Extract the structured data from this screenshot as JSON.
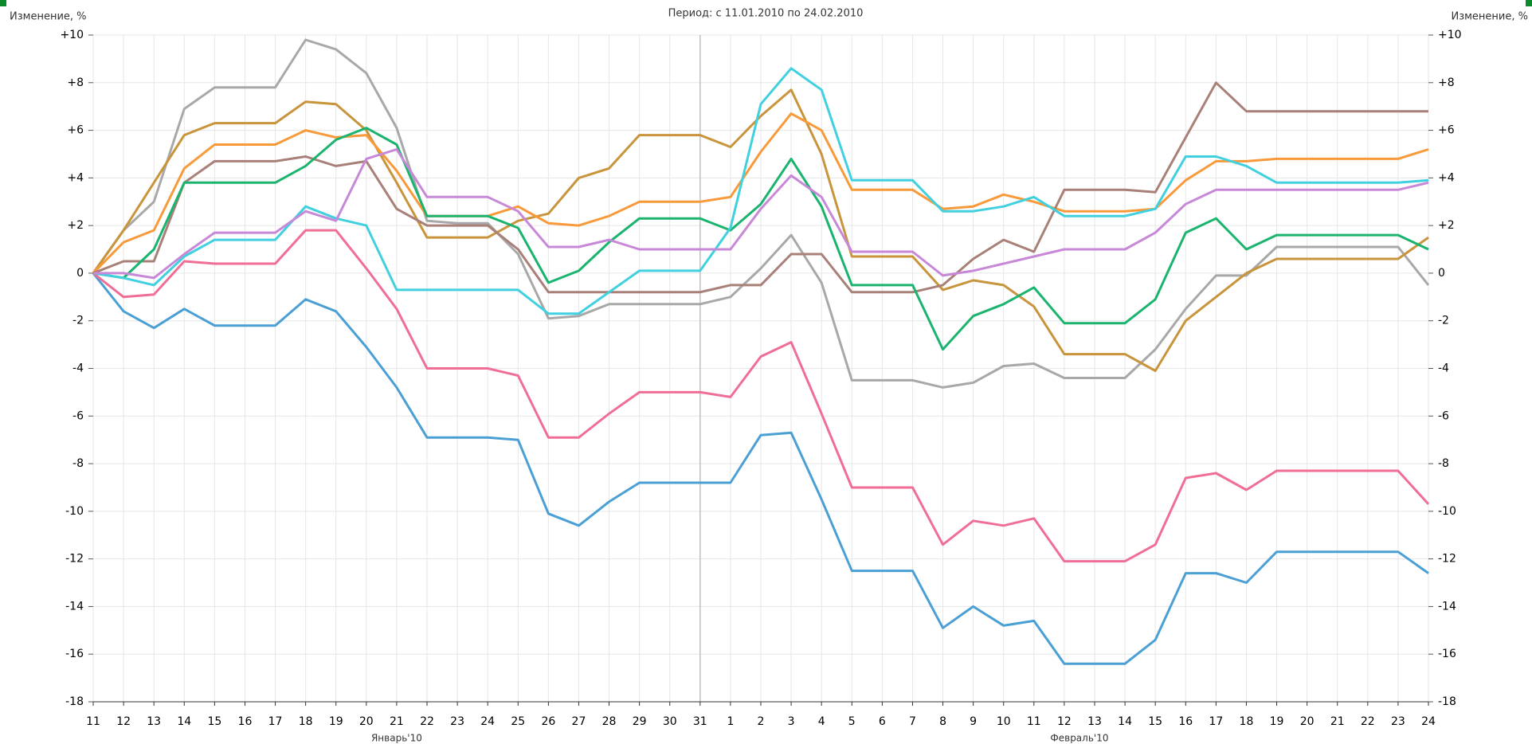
{
  "chart_data": {
    "type": "line",
    "title": "Период: с 11.01.2010 по 24.02.2010",
    "ylabel": "Изменение, %",
    "y2label": "Изменение, %",
    "month_labels": [
      "Январь'10",
      "Февраль'10"
    ],
    "categories": [
      "11",
      "12",
      "13",
      "14",
      "15",
      "16",
      "17",
      "18",
      "19",
      "20",
      "21",
      "22",
      "23",
      "24",
      "25",
      "26",
      "27",
      "28",
      "29",
      "30",
      "31",
      "1",
      "2",
      "3",
      "4",
      "5",
      "6",
      "7",
      "8",
      "9",
      "10",
      "11",
      "12",
      "13",
      "14",
      "15",
      "16",
      "17",
      "18",
      "19",
      "20",
      "21",
      "22",
      "23",
      "24"
    ],
    "ylim": [
      -18,
      10
    ],
    "yticks": [
      {
        "value": 10,
        "label": "+10"
      },
      {
        "value": 8,
        "label": "+8"
      },
      {
        "value": 6,
        "label": "+6"
      },
      {
        "value": 4,
        "label": "+4"
      },
      {
        "value": 2,
        "label": "+2"
      },
      0,
      -2,
      -4,
      -6,
      -8,
      -10,
      -12,
      -14,
      -16,
      -18
    ],
    "grid": true,
    "series": [
      {
        "color": "#4a9fd4",
        "values": [
          0,
          -1.6,
          -2.3,
          -1.5,
          -2.2,
          -2.2,
          -2.2,
          -1.1,
          -1.6,
          -3.1,
          -4.8,
          -6.9,
          -6.9,
          -6.9,
          -7.0,
          -10.1,
          -10.6,
          -9.6,
          -8.8,
          -8.8,
          -8.8,
          -8.8,
          -6.8,
          -6.7,
          -9.5,
          -12.5,
          -12.5,
          -12.5,
          -14.9,
          -14.0,
          -14.8,
          -14.6,
          -16.4,
          -16.4,
          -16.4,
          -15.4,
          -12.6,
          -12.6,
          -13.0,
          -11.7,
          -11.7,
          -11.7,
          -11.7,
          -11.7,
          -12.6
        ]
      },
      {
        "color": "#f06e96",
        "values": [
          0,
          -1.0,
          -0.9,
          0.5,
          0.4,
          0.4,
          0.4,
          1.8,
          1.8,
          0.2,
          -1.5,
          -4.0,
          -4.0,
          -4.0,
          -4.3,
          -6.9,
          -6.9,
          -5.9,
          -5.0,
          -5.0,
          -5.0,
          -5.2,
          -3.5,
          -2.9,
          -5.9,
          -9.0,
          -9.0,
          -9.0,
          -11.4,
          -10.4,
          -10.6,
          -10.3,
          -12.1,
          -12.1,
          -12.1,
          -11.4,
          -8.6,
          -8.4,
          -9.1,
          -8.3,
          -8.3,
          -8.3,
          -8.3,
          -8.3,
          -9.7
        ]
      },
      {
        "color": "#a8a8a8",
        "values": [
          0,
          1.8,
          3.0,
          6.9,
          7.8,
          7.8,
          7.8,
          9.8,
          9.4,
          8.4,
          6.1,
          2.2,
          2.1,
          2.1,
          0.8,
          -1.9,
          -1.8,
          -1.3,
          -1.3,
          -1.3,
          -1.3,
          -1.0,
          0.2,
          1.6,
          -0.4,
          -4.5,
          -4.5,
          -4.5,
          -4.8,
          -4.6,
          -3.9,
          -3.8,
          -4.4,
          -4.4,
          -4.4,
          -3.2,
          -1.5,
          -0.1,
          -0.1,
          1.1,
          1.1,
          1.1,
          1.1,
          1.1,
          -0.5
        ]
      },
      {
        "color": "#c8943c",
        "values": [
          0,
          1.8,
          3.8,
          5.8,
          6.3,
          6.3,
          6.3,
          7.2,
          7.1,
          6.0,
          3.8,
          1.5,
          1.5,
          1.5,
          2.2,
          2.5,
          4.0,
          4.4,
          5.8,
          5.8,
          5.8,
          5.3,
          6.6,
          7.7,
          5.0,
          0.7,
          0.7,
          0.7,
          -0.7,
          -0.3,
          -0.5,
          -1.4,
          -3.4,
          -3.4,
          -3.4,
          -4.1,
          -2.0,
          -1.0,
          0.0,
          0.6,
          0.6,
          0.6,
          0.6,
          0.6,
          1.5
        ]
      },
      {
        "color": "#f89a3a",
        "values": [
          0,
          1.3,
          1.8,
          4.4,
          5.4,
          5.4,
          5.4,
          6.0,
          5.7,
          5.8,
          4.3,
          2.4,
          2.4,
          2.4,
          2.8,
          2.1,
          2.0,
          2.4,
          3.0,
          3.0,
          3.0,
          3.2,
          5.1,
          6.7,
          6.0,
          3.5,
          3.5,
          3.5,
          2.7,
          2.8,
          3.3,
          3.0,
          2.6,
          2.6,
          2.6,
          2.7,
          3.9,
          4.7,
          4.7,
          4.8,
          4.8,
          4.8,
          4.8,
          4.8,
          5.2
        ]
      },
      {
        "color": "#a88078",
        "values": [
          0,
          0.5,
          0.5,
          3.8,
          4.7,
          4.7,
          4.7,
          4.9,
          4.5,
          4.7,
          2.7,
          2.0,
          2.0,
          2.0,
          1.0,
          -0.8,
          -0.8,
          -0.8,
          -0.8,
          -0.8,
          -0.8,
          -0.5,
          -0.5,
          0.8,
          0.8,
          -0.8,
          -0.8,
          -0.8,
          -0.5,
          0.6,
          1.4,
          0.9,
          3.5,
          3.5,
          3.5,
          3.4,
          5.7,
          8.0,
          6.8,
          6.8,
          6.8,
          6.8,
          6.8,
          6.8,
          6.8
        ]
      },
      {
        "color": "#1ab46e",
        "values": [
          0,
          -0.2,
          1.0,
          3.8,
          3.8,
          3.8,
          3.8,
          4.5,
          5.6,
          6.1,
          5.4,
          2.4,
          2.4,
          2.4,
          1.9,
          -0.4,
          0.1,
          1.3,
          2.3,
          2.3,
          2.3,
          1.8,
          2.9,
          4.8,
          2.8,
          -0.5,
          -0.5,
          -0.5,
          -3.2,
          -1.8,
          -1.3,
          -0.6,
          -2.1,
          -2.1,
          -2.1,
          -1.1,
          1.7,
          2.3,
          1.0,
          1.6,
          1.6,
          1.6,
          1.6,
          1.6,
          1.0
        ]
      },
      {
        "color": "#40d0e0",
        "values": [
          0,
          -0.2,
          -0.5,
          0.7,
          1.4,
          1.4,
          1.4,
          2.8,
          2.3,
          2.0,
          -0.7,
          -0.7,
          -0.7,
          -0.7,
          -0.7,
          -1.7,
          -1.7,
          -0.8,
          0.1,
          0.1,
          0.1,
          1.9,
          7.1,
          8.6,
          7.7,
          3.9,
          3.9,
          3.9,
          2.6,
          2.6,
          2.8,
          3.2,
          2.4,
          2.4,
          2.4,
          2.7,
          4.9,
          4.9,
          4.5,
          3.8,
          3.8,
          3.8,
          3.8,
          3.8,
          3.9
        ]
      },
      {
        "color": "#c888d8",
        "values": [
          0,
          0.0,
          -0.2,
          0.8,
          1.7,
          1.7,
          1.7,
          2.6,
          2.2,
          4.8,
          5.2,
          3.2,
          3.2,
          3.2,
          2.6,
          1.1,
          1.1,
          1.4,
          1.0,
          1.0,
          1.0,
          1.0,
          2.7,
          4.1,
          3.2,
          0.9,
          0.9,
          0.9,
          -0.1,
          0.1,
          0.4,
          0.7,
          1.0,
          1.0,
          1.0,
          1.7,
          2.9,
          3.5,
          3.5,
          3.5,
          3.5,
          3.5,
          3.5,
          3.5,
          3.8
        ]
      }
    ]
  }
}
